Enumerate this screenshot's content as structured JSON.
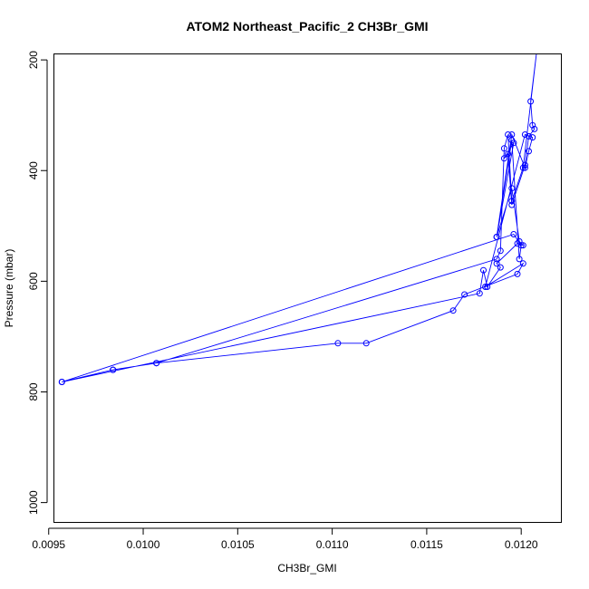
{
  "chart_data": {
    "type": "line",
    "title": "ATOM2 Northeast_Pacific_2 CH3Br_GMI",
    "xlabel": "CH3Br_GMI",
    "ylabel": "Pressure (mbar)",
    "xlim": [
      0.00953,
      0.01221
    ],
    "ylim": [
      1035,
      190
    ],
    "y_reversed": true,
    "x_ticks": [
      0.0095,
      0.01,
      0.0105,
      0.011,
      0.0115,
      0.012
    ],
    "x_tick_labels": [
      "0.0095",
      "0.0100",
      "0.0105",
      "0.0110",
      "0.0115",
      "0.0120"
    ],
    "y_ticks": [
      200,
      400,
      600,
      800,
      1000
    ],
    "y_tick_labels": [
      "200",
      "400",
      "600",
      "800",
      "1000"
    ],
    "series": [
      {
        "color": "#0000ff",
        "x": [
          0.01208,
          0.01205,
          0.01206,
          0.01207,
          0.01204,
          0.01202,
          0.01195,
          0.01193,
          0.01191,
          0.01196,
          0.01187,
          0.01195,
          0.01199,
          0.01201,
          0.01198,
          0.01187,
          0.01189,
          0.01182,
          0.0118,
          0.01178,
          0.00957,
          0.00984,
          0.01007,
          0.01103,
          0.01118,
          0.01164,
          0.0117,
          0.01198,
          0.01201,
          0.01181,
          0.01202,
          0.01206,
          0.01204,
          0.01202,
          0.01195,
          0.01187,
          0.01195,
          0.01199,
          0.012,
          0.01196,
          0.00957,
          0.00984,
          0.01007,
          0.01187,
          0.01189,
          0.01191,
          0.01193,
          0.01195,
          0.01201,
          0.01208
        ],
        "y": [
          190,
          275,
          318,
          325,
          338,
          390,
          462,
          370,
          378,
          350,
          520,
          432,
          528,
          535,
          532,
          568,
          575,
          610,
          580,
          622,
          782,
          760,
          748,
          712,
          712,
          653,
          624,
          587,
          568,
          610,
          335,
          340,
          365,
          395,
          335,
          520,
          345,
          560,
          535,
          515,
          782,
          760,
          748,
          560,
          545,
          360,
          335,
          455,
          395,
          190
        ]
      }
    ]
  }
}
